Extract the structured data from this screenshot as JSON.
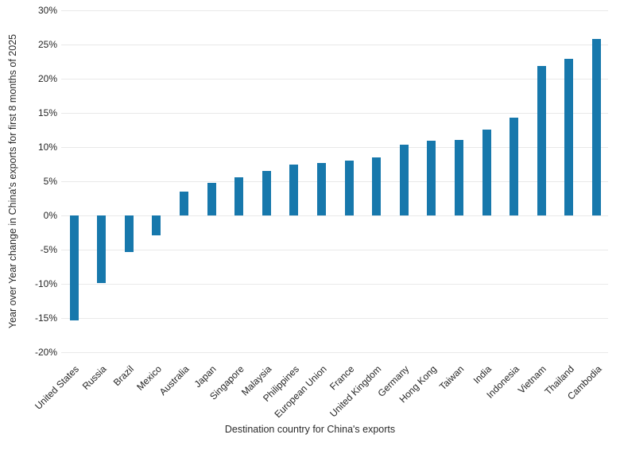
{
  "chart_data": {
    "type": "bar",
    "title": "",
    "xlabel": "Destination country for China's exports",
    "ylabel": "Year over Year change in China's exports for first 8 months of 2025",
    "categories": [
      "United States",
      "Russia",
      "Brazil",
      "Mexico",
      "Australia",
      "Japan",
      "Singapore",
      "Malaysia",
      "Philippines",
      "European Union",
      "France",
      "United Kingdom",
      "Germany",
      "Hong Kong",
      "Taiwan",
      "India",
      "Indonesia",
      "Vietnam",
      "Thailand",
      "Cambodia"
    ],
    "values": [
      -15.4,
      -9.9,
      -5.4,
      -2.9,
      3.5,
      4.8,
      5.6,
      6.5,
      7.4,
      7.7,
      8.0,
      8.5,
      10.4,
      10.9,
      11.1,
      12.6,
      14.3,
      21.9,
      22.9,
      25.8
    ],
    "value_unit": "%",
    "ylim": [
      -20,
      30
    ],
    "ytick_step": 5,
    "ytick_labels": [
      "30%",
      "25%",
      "20%",
      "15%",
      "10%",
      "5%",
      "0%",
      "-5%",
      "-10%",
      "-15%",
      "-20%"
    ],
    "grid": "horizontal",
    "legend": "none",
    "bar_color": "#1778ac",
    "gridline_color": "#e9e9e9",
    "text_color": "#262626"
  }
}
